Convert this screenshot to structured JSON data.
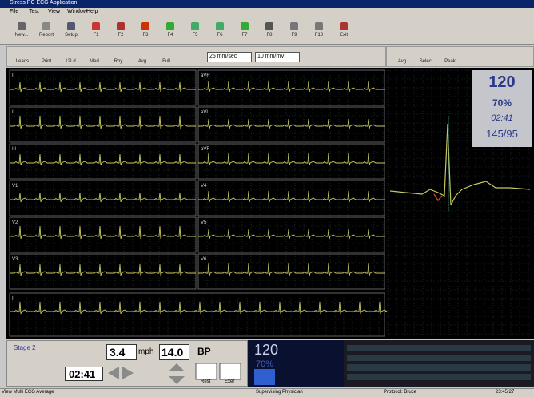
{
  "window_title": "Stress PC ECG Application",
  "menu": [
    "File",
    "Test",
    "View",
    "Window",
    "Help"
  ],
  "toolbar": [
    "New...",
    "Report",
    "Setup",
    "F1",
    "F2",
    "F3",
    "F4",
    "F5",
    "F6",
    "F7",
    "F8",
    "F9",
    "F10",
    "Exit"
  ],
  "toolbar2": [
    "Leads",
    "Print",
    "12Ld",
    "Med",
    "Rhy",
    "Avg",
    "Full"
  ],
  "dropdowns": [
    "25 mm/sec",
    "10 mm/mV"
  ],
  "right_toolbar": [
    "Avg",
    "Select",
    "Peak"
  ],
  "leads": [
    "I",
    "aVR",
    "II",
    "aVL",
    "III",
    "aVF",
    "V1",
    "V4",
    "V2",
    "V5",
    "V3",
    "V6"
  ],
  "rhythm_lead": "II",
  "vitals": {
    "hr": "120",
    "percent": "70%",
    "time": "02:41",
    "bp": "145/95"
  },
  "controls": {
    "speed": "3.4",
    "speed_unit": "mph",
    "grade": "14.0",
    "bp_label": "BP",
    "stage_time": "02:41",
    "hr": "120",
    "percent": "70%",
    "stage": "Stage 2",
    "rest": "Rest",
    "exer": "Exer"
  },
  "status": [
    "View Multi ECG Average",
    "Supervising Physician",
    "Protocol: Bruce",
    "23:45:27"
  ]
}
